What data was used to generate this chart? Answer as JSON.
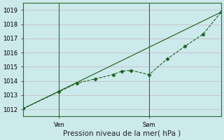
{
  "xlabel": "Pression niveau de la mer( hPa )",
  "bg_color": "#cce9eb",
  "grid_color": "#b8d8d8",
  "line_color": "#1a5c1a",
  "ylim": [
    1011.5,
    1019.5
  ],
  "yticks": [
    1012,
    1013,
    1014,
    1015,
    1016,
    1017,
    1018,
    1019
  ],
  "xlim": [
    0,
    11
  ],
  "ven_x": 2.0,
  "sam_x": 7.0,
  "ven_label": "Ven",
  "sam_label": "Sam",
  "tick_label_fontsize": 6.0,
  "xlabel_fontsize": 7.5,
  "line1_x": [
    0,
    2.0,
    3.0,
    4.0,
    5.0,
    5.5,
    6.0,
    7.0,
    8.0,
    9.0,
    10.0,
    11.0
  ],
  "line1_y": [
    1012.05,
    1013.25,
    1013.85,
    1014.15,
    1014.45,
    1014.7,
    1014.75,
    1014.45,
    1015.55,
    1016.45,
    1017.3,
    1018.85
  ],
  "line2_x": [
    0,
    11.0
  ],
  "line2_y": [
    1012.05,
    1018.85
  ]
}
